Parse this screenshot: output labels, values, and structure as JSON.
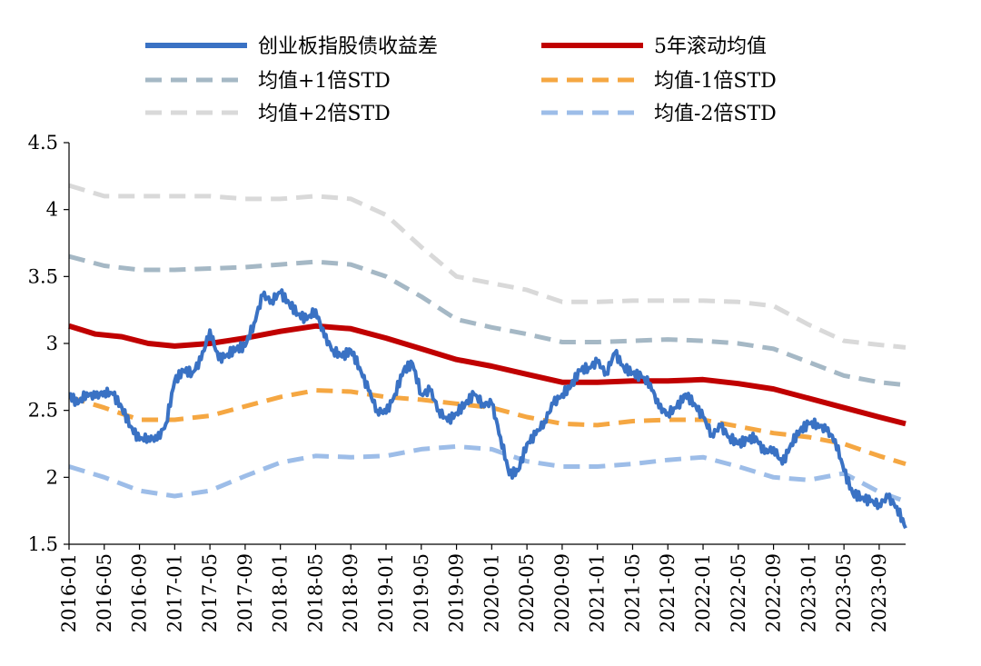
{
  "chart_data": {
    "type": "line",
    "title": "",
    "xlabel": "",
    "ylabel": "",
    "ylim": [
      1.5,
      4.5
    ],
    "yticks": [
      "1.5",
      "2",
      "2.5",
      "3",
      "3.5",
      "4",
      "4.5"
    ],
    "x_start": "2016-01",
    "x_end": "2023-12",
    "x_tick_labels": [
      "2016-01",
      "2016-05",
      "2016-09",
      "2017-01",
      "2017-05",
      "2017-09",
      "2018-01",
      "2018-05",
      "2018-09",
      "2019-01",
      "2019-05",
      "2019-09",
      "2020-01",
      "2020-05",
      "2020-09",
      "2021-01",
      "2021-05",
      "2021-09",
      "2022-01",
      "2022-05",
      "2022-09",
      "2023-01",
      "2023-05",
      "2023-09"
    ],
    "legend_position": "top",
    "grid": false,
    "series": [
      {
        "name": "创业板指股债收益差",
        "color": "#3a72c4",
        "style": "solid",
        "points": [
          [
            "2016-01",
            2.62
          ],
          [
            "2016-02",
            2.55
          ],
          [
            "2016-03",
            2.63
          ],
          [
            "2016-04",
            2.6
          ],
          [
            "2016-05",
            2.64
          ],
          [
            "2016-06",
            2.62
          ],
          [
            "2016-07",
            2.52
          ],
          [
            "2016-08",
            2.38
          ],
          [
            "2016-09",
            2.28
          ],
          [
            "2016-10",
            2.3
          ],
          [
            "2016-11",
            2.28
          ],
          [
            "2016-12",
            2.4
          ],
          [
            "2017-01",
            2.72
          ],
          [
            "2017-02",
            2.8
          ],
          [
            "2017-03",
            2.78
          ],
          [
            "2017-04",
            2.88
          ],
          [
            "2017-05",
            3.1
          ],
          [
            "2017-06",
            2.88
          ],
          [
            "2017-07",
            2.92
          ],
          [
            "2017-08",
            2.96
          ],
          [
            "2017-09",
            2.98
          ],
          [
            "2017-10",
            3.15
          ],
          [
            "2017-11",
            3.36
          ],
          [
            "2017-12",
            3.32
          ],
          [
            "2018-01",
            3.38
          ],
          [
            "2018-02",
            3.3
          ],
          [
            "2018-03",
            3.22
          ],
          [
            "2018-04",
            3.18
          ],
          [
            "2018-05",
            3.25
          ],
          [
            "2018-06",
            3.05
          ],
          [
            "2018-07",
            2.95
          ],
          [
            "2018-08",
            2.9
          ],
          [
            "2018-09",
            2.95
          ],
          [
            "2018-10",
            2.82
          ],
          [
            "2018-11",
            2.65
          ],
          [
            "2018-12",
            2.5
          ],
          [
            "2019-01",
            2.48
          ],
          [
            "2019-02",
            2.62
          ],
          [
            "2019-03",
            2.8
          ],
          [
            "2019-04",
            2.85
          ],
          [
            "2019-05",
            2.62
          ],
          [
            "2019-06",
            2.65
          ],
          [
            "2019-07",
            2.5
          ],
          [
            "2019-08",
            2.42
          ],
          [
            "2019-09",
            2.48
          ],
          [
            "2019-10",
            2.55
          ],
          [
            "2019-11",
            2.62
          ],
          [
            "2019-12",
            2.55
          ],
          [
            "2020-01",
            2.55
          ],
          [
            "2020-02",
            2.3
          ],
          [
            "2020-03",
            2.02
          ],
          [
            "2020-04",
            2.05
          ],
          [
            "2020-05",
            2.25
          ],
          [
            "2020-06",
            2.32
          ],
          [
            "2020-07",
            2.42
          ],
          [
            "2020-08",
            2.55
          ],
          [
            "2020-09",
            2.62
          ],
          [
            "2020-10",
            2.68
          ],
          [
            "2020-11",
            2.8
          ],
          [
            "2020-12",
            2.82
          ],
          [
            "2021-01",
            2.86
          ],
          [
            "2021-02",
            2.78
          ],
          [
            "2021-03",
            2.93
          ],
          [
            "2021-04",
            2.82
          ],
          [
            "2021-05",
            2.78
          ],
          [
            "2021-06",
            2.75
          ],
          [
            "2021-07",
            2.7
          ],
          [
            "2021-08",
            2.52
          ],
          [
            "2021-09",
            2.48
          ],
          [
            "2021-10",
            2.52
          ],
          [
            "2021-11",
            2.62
          ],
          [
            "2021-12",
            2.55
          ],
          [
            "2022-01",
            2.45
          ],
          [
            "2022-02",
            2.32
          ],
          [
            "2022-03",
            2.38
          ],
          [
            "2022-04",
            2.3
          ],
          [
            "2022-05",
            2.25
          ],
          [
            "2022-06",
            2.28
          ],
          [
            "2022-07",
            2.3
          ],
          [
            "2022-08",
            2.18
          ],
          [
            "2022-09",
            2.22
          ],
          [
            "2022-10",
            2.1
          ],
          [
            "2022-11",
            2.25
          ],
          [
            "2022-12",
            2.35
          ],
          [
            "2023-01",
            2.4
          ],
          [
            "2023-02",
            2.4
          ],
          [
            "2023-03",
            2.35
          ],
          [
            "2023-04",
            2.28
          ],
          [
            "2023-05",
            2.05
          ],
          [
            "2023-06",
            1.88
          ],
          [
            "2023-07",
            1.85
          ],
          [
            "2023-08",
            1.82
          ],
          [
            "2023-09",
            1.8
          ],
          [
            "2023-10",
            1.85
          ],
          [
            "2023-11",
            1.78
          ],
          [
            "2023-12",
            1.62
          ]
        ]
      },
      {
        "name": "5年滚动均值",
        "color": "#c00000",
        "style": "solid",
        "points": [
          [
            "2016-01",
            3.13
          ],
          [
            "2016-04",
            3.07
          ],
          [
            "2016-07",
            3.05
          ],
          [
            "2016-10",
            3.0
          ],
          [
            "2017-01",
            2.98
          ],
          [
            "2017-05",
            3.0
          ],
          [
            "2017-09",
            3.04
          ],
          [
            "2018-01",
            3.09
          ],
          [
            "2018-05",
            3.13
          ],
          [
            "2018-09",
            3.11
          ],
          [
            "2019-01",
            3.04
          ],
          [
            "2019-05",
            2.96
          ],
          [
            "2019-09",
            2.88
          ],
          [
            "2020-01",
            2.83
          ],
          [
            "2020-05",
            2.77
          ],
          [
            "2020-09",
            2.71
          ],
          [
            "2021-01",
            2.71
          ],
          [
            "2021-05",
            2.72
          ],
          [
            "2021-09",
            2.72
          ],
          [
            "2022-01",
            2.73
          ],
          [
            "2022-05",
            2.7
          ],
          [
            "2022-09",
            2.66
          ],
          [
            "2023-01",
            2.59
          ],
          [
            "2023-05",
            2.52
          ],
          [
            "2023-09",
            2.45
          ],
          [
            "2023-12",
            2.4
          ]
        ]
      },
      {
        "name": "均值+1倍STD",
        "color": "#a5b8c5",
        "style": "dashed",
        "points": [
          [
            "2016-01",
            3.65
          ],
          [
            "2016-05",
            3.58
          ],
          [
            "2016-09",
            3.55
          ],
          [
            "2017-01",
            3.55
          ],
          [
            "2017-05",
            3.56
          ],
          [
            "2017-09",
            3.57
          ],
          [
            "2018-01",
            3.59
          ],
          [
            "2018-05",
            3.61
          ],
          [
            "2018-09",
            3.59
          ],
          [
            "2019-01",
            3.5
          ],
          [
            "2019-05",
            3.35
          ],
          [
            "2019-09",
            3.18
          ],
          [
            "2020-01",
            3.12
          ],
          [
            "2020-05",
            3.07
          ],
          [
            "2020-09",
            3.01
          ],
          [
            "2021-01",
            3.01
          ],
          [
            "2021-05",
            3.02
          ],
          [
            "2021-09",
            3.03
          ],
          [
            "2022-01",
            3.02
          ],
          [
            "2022-05",
            3.0
          ],
          [
            "2022-09",
            2.96
          ],
          [
            "2023-01",
            2.86
          ],
          [
            "2023-05",
            2.76
          ],
          [
            "2023-09",
            2.71
          ],
          [
            "2023-12",
            2.69
          ]
        ]
      },
      {
        "name": "均值-1倍STD",
        "color": "#f5a742",
        "style": "dashed",
        "points": [
          [
            "2016-01",
            2.6
          ],
          [
            "2016-05",
            2.52
          ],
          [
            "2016-09",
            2.43
          ],
          [
            "2017-01",
            2.43
          ],
          [
            "2017-05",
            2.46
          ],
          [
            "2017-09",
            2.53
          ],
          [
            "2018-01",
            2.6
          ],
          [
            "2018-05",
            2.65
          ],
          [
            "2018-09",
            2.64
          ],
          [
            "2019-01",
            2.6
          ],
          [
            "2019-05",
            2.58
          ],
          [
            "2019-09",
            2.55
          ],
          [
            "2020-01",
            2.52
          ],
          [
            "2020-05",
            2.45
          ],
          [
            "2020-09",
            2.4
          ],
          [
            "2021-01",
            2.39
          ],
          [
            "2021-05",
            2.42
          ],
          [
            "2021-09",
            2.43
          ],
          [
            "2022-01",
            2.43
          ],
          [
            "2022-05",
            2.38
          ],
          [
            "2022-09",
            2.33
          ],
          [
            "2023-01",
            2.3
          ],
          [
            "2023-05",
            2.25
          ],
          [
            "2023-09",
            2.16
          ],
          [
            "2023-12",
            2.1
          ]
        ]
      },
      {
        "name": "均值+2倍STD",
        "color": "#d9d9d9",
        "style": "dashed",
        "points": [
          [
            "2016-01",
            4.18
          ],
          [
            "2016-05",
            4.1
          ],
          [
            "2016-09",
            4.1
          ],
          [
            "2017-01",
            4.1
          ],
          [
            "2017-05",
            4.1
          ],
          [
            "2017-09",
            4.08
          ],
          [
            "2018-01",
            4.08
          ],
          [
            "2018-05",
            4.1
          ],
          [
            "2018-09",
            4.08
          ],
          [
            "2019-01",
            3.96
          ],
          [
            "2019-05",
            3.72
          ],
          [
            "2019-09",
            3.5
          ],
          [
            "2020-01",
            3.45
          ],
          [
            "2020-05",
            3.4
          ],
          [
            "2020-09",
            3.31
          ],
          [
            "2021-01",
            3.31
          ],
          [
            "2021-05",
            3.32
          ],
          [
            "2021-09",
            3.32
          ],
          [
            "2022-01",
            3.32
          ],
          [
            "2022-05",
            3.31
          ],
          [
            "2022-09",
            3.28
          ],
          [
            "2023-01",
            3.14
          ],
          [
            "2023-05",
            3.02
          ],
          [
            "2023-09",
            2.99
          ],
          [
            "2023-12",
            2.97
          ]
        ]
      },
      {
        "name": "均值-2倍STD",
        "color": "#9dbde8",
        "style": "dashed",
        "points": [
          [
            "2016-01",
            2.08
          ],
          [
            "2016-05",
            2.0
          ],
          [
            "2016-09",
            1.9
          ],
          [
            "2017-01",
            1.86
          ],
          [
            "2017-05",
            1.9
          ],
          [
            "2017-09",
            2.01
          ],
          [
            "2018-01",
            2.11
          ],
          [
            "2018-05",
            2.16
          ],
          [
            "2018-09",
            2.15
          ],
          [
            "2019-01",
            2.16
          ],
          [
            "2019-05",
            2.21
          ],
          [
            "2019-09",
            2.23
          ],
          [
            "2020-01",
            2.21
          ],
          [
            "2020-05",
            2.12
          ],
          [
            "2020-09",
            2.08
          ],
          [
            "2021-01",
            2.08
          ],
          [
            "2021-05",
            2.1
          ],
          [
            "2021-09",
            2.13
          ],
          [
            "2022-01",
            2.15
          ],
          [
            "2022-05",
            2.08
          ],
          [
            "2022-09",
            2.0
          ],
          [
            "2023-01",
            1.98
          ],
          [
            "2023-05",
            2.03
          ],
          [
            "2023-09",
            1.89
          ],
          [
            "2023-12",
            1.82
          ]
        ]
      }
    ]
  }
}
